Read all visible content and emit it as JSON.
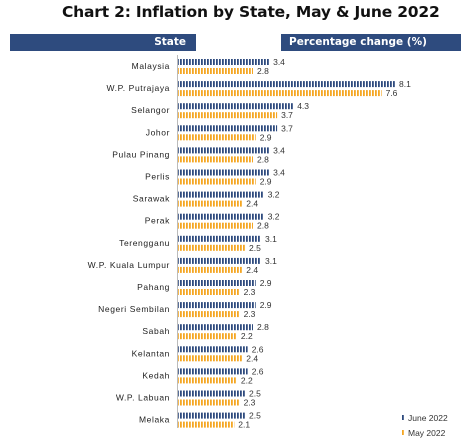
{
  "title": "Chart 2: Inflation by State, May & June 2022",
  "header": {
    "state_label": "State",
    "value_label": "Percentage change (%)"
  },
  "colors": {
    "header_bg": "#2e4b7e",
    "june": "#2e4b7e",
    "may": "#f5a623"
  },
  "chart_data": {
    "type": "bar",
    "orientation": "horizontal",
    "title": "Chart 2: Inflation by State, May & June 2022",
    "xlabel": "Percentage change (%)",
    "ylabel": "State",
    "categories": [
      "Malaysia",
      "W.P. Putrajaya",
      "Selangor",
      "Johor",
      "Pulau Pinang",
      "Perlis",
      "Sarawak",
      "Perak",
      "Terengganu",
      "W.P. Kuala Lumpur",
      "Pahang",
      "Negeri Sembilan",
      "Sabah",
      "Kelantan",
      "Kedah",
      "W.P. Labuan",
      "Melaka"
    ],
    "series": [
      {
        "name": "June 2022",
        "values": [
          3.4,
          8.1,
          4.3,
          3.7,
          3.4,
          3.4,
          3.2,
          3.2,
          3.1,
          3.1,
          2.9,
          2.9,
          2.8,
          2.6,
          2.6,
          2.5,
          2.5
        ]
      },
      {
        "name": "May 2022",
        "values": [
          2.8,
          7.6,
          3.7,
          2.9,
          2.8,
          2.9,
          2.4,
          2.8,
          2.5,
          2.4,
          2.3,
          2.3,
          2.2,
          2.4,
          2.2,
          2.3,
          2.1
        ]
      }
    ],
    "xlim": [
      0,
      8.1
    ],
    "legend": "bottom-right"
  }
}
